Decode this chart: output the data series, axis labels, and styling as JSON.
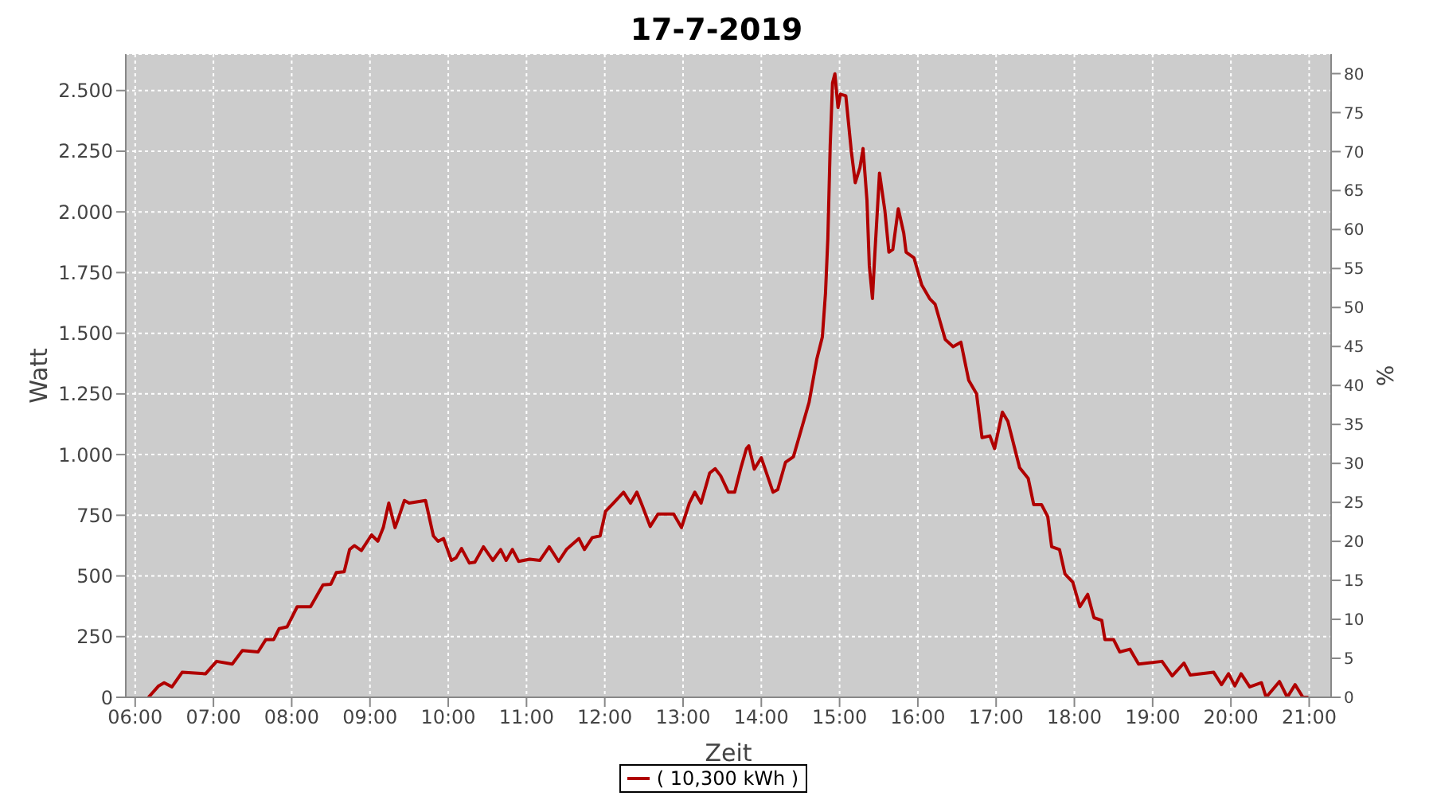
{
  "chart_data": {
    "type": "line",
    "title": "17-7-2019",
    "xlabel": "Zeit",
    "ylabel": "Watt",
    "y2label": "%",
    "x": [
      6.17,
      6.3,
      6.37,
      6.47,
      6.6,
      6.9,
      7.04,
      7.24,
      7.37,
      7.57,
      7.67,
      7.77,
      7.84,
      7.94,
      8.07,
      8.24,
      8.4,
      8.5,
      8.57,
      8.67,
      8.74,
      8.8,
      8.89,
      9.02,
      9.1,
      9.17,
      9.24,
      9.32,
      9.37,
      9.44,
      9.5,
      9.71,
      9.81,
      9.87,
      9.94,
      10.04,
      10.1,
      10.17,
      10.27,
      10.34,
      10.45,
      10.57,
      10.67,
      10.74,
      10.82,
      10.9,
      11.04,
      11.17,
      11.29,
      11.41,
      11.51,
      11.67,
      11.74,
      11.84,
      11.94,
      12.01,
      12.11,
      12.24,
      12.33,
      12.41,
      12.48,
      12.58,
      12.68,
      12.88,
      12.98,
      13.08,
      13.15,
      13.23,
      13.34,
      13.41,
      13.48,
      13.58,
      13.66,
      13.74,
      13.81,
      13.84,
      13.91,
      14.0,
      14.15,
      14.21,
      14.31,
      14.41,
      14.51,
      14.61,
      14.71,
      14.78,
      14.82,
      14.85,
      14.88,
      14.91,
      14.94,
      14.98,
      15.01,
      15.08,
      15.15,
      15.2,
      15.26,
      15.3,
      15.35,
      15.38,
      15.42,
      15.45,
      15.51,
      15.58,
      15.63,
      15.68,
      15.75,
      15.82,
      15.85,
      15.95,
      16.05,
      16.15,
      16.22,
      16.35,
      16.45,
      16.55,
      16.65,
      16.75,
      16.82,
      16.92,
      16.98,
      17.08,
      17.15,
      17.3,
      17.41,
      17.48,
      17.58,
      17.66,
      17.71,
      17.81,
      17.88,
      17.98,
      18.07,
      18.17,
      18.25,
      18.35,
      18.39,
      18.5,
      18.58,
      18.71,
      18.82,
      19.12,
      19.25,
      19.4,
      19.48,
      19.78,
      19.88,
      19.97,
      20.05,
      20.13,
      20.24,
      20.39,
      20.45,
      20.62,
      20.72,
      20.82,
      20.92,
      20.99
    ],
    "series": [
      {
        "name": "( 10,300 kWh )",
        "color": "#b00000",
        "values": [
          0,
          47,
          60,
          43,
          103,
          97,
          148,
          137,
          193,
          187,
          238,
          238,
          283,
          290,
          373,
          373,
          463,
          466,
          514,
          517,
          609,
          625,
          605,
          669,
          643,
          699,
          800,
          699,
          744,
          811,
          800,
          811,
          665,
          643,
          654,
          564,
          575,
          613,
          553,
          557,
          620,
          564,
          609,
          564,
          609,
          560,
          569,
          564,
          620,
          560,
          609,
          654,
          609,
          658,
          665,
          766,
          800,
          845,
          800,
          845,
          789,
          704,
          755,
          755,
          699,
          800,
          845,
          800,
          924,
          942,
          913,
          845,
          845,
          946,
          1025,
          1036,
          940,
          987,
          845,
          856,
          969,
          991,
          1103,
          1215,
          1395,
          1485,
          1665,
          1890,
          2272,
          2531,
          2569,
          2430,
          2485,
          2478,
          2250,
          2120,
          2182,
          2261,
          2047,
          1778,
          1643,
          1823,
          2160,
          2002,
          1834,
          1845,
          2013,
          1912,
          1834,
          1811,
          1699,
          1643,
          1620,
          1474,
          1445,
          1463,
          1306,
          1250,
          1070,
          1077,
          1025,
          1175,
          1137,
          946,
          902,
          794,
          794,
          744,
          620,
          609,
          508,
          474,
          373,
          424,
          328,
          317,
          238,
          238,
          187,
          198,
          137,
          148,
          88,
          141,
          92,
          103,
          52,
          97,
          47,
          97,
          43,
          60,
          0,
          65,
          0,
          52,
          0,
          0
        ]
      }
    ],
    "xlim": [
      5.88,
      21.28
    ],
    "xticks": [
      {
        "value": 6,
        "label": "06:00"
      },
      {
        "value": 7,
        "label": "07:00"
      },
      {
        "value": 8,
        "label": "08:00"
      },
      {
        "value": 9,
        "label": "09:00"
      },
      {
        "value": 10,
        "label": "10:00"
      },
      {
        "value": 11,
        "label": "11:00"
      },
      {
        "value": 12,
        "label": "12:00"
      },
      {
        "value": 13,
        "label": "13:00"
      },
      {
        "value": 14,
        "label": "14:00"
      },
      {
        "value": 15,
        "label": "15:00"
      },
      {
        "value": 16,
        "label": "16:00"
      },
      {
        "value": 17,
        "label": "17:00"
      },
      {
        "value": 18,
        "label": "18:00"
      },
      {
        "value": 19,
        "label": "19:00"
      },
      {
        "value": 20,
        "label": "20:00"
      },
      {
        "value": 21,
        "label": "21:00"
      }
    ],
    "ylim": [
      0,
      2650
    ],
    "yticks": [
      0,
      250,
      500,
      750,
      {
        "value": 1000,
        "label": "1.000"
      },
      {
        "value": 1250,
        "label": "1.250"
      },
      {
        "value": 1500,
        "label": "1.500"
      },
      {
        "value": 1750,
        "label": "1.750"
      },
      {
        "value": 2000,
        "label": "2.000"
      },
      {
        "value": 2250,
        "label": "2.250"
      },
      {
        "value": 2500,
        "label": "2.500"
      }
    ],
    "y2lim": [
      0,
      82.5
    ],
    "y2ticks": [
      0,
      5,
      10,
      15,
      20,
      25,
      30,
      35,
      40,
      45,
      50,
      55,
      60,
      65,
      70,
      75,
      80
    ],
    "grid": true,
    "legend": "bottom",
    "marker": "none",
    "line_style": "solid"
  }
}
